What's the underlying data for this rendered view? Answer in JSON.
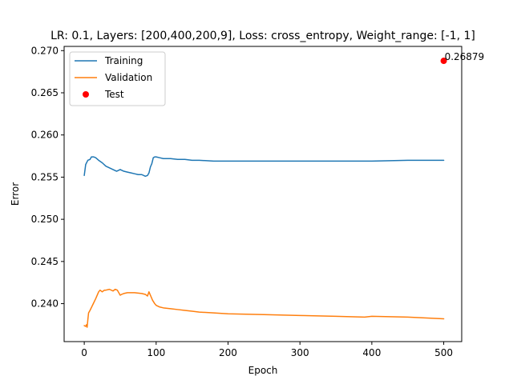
{
  "chart_data": {
    "type": "line",
    "title": "LR: 0.1, Layers: [200,400,200,9], Loss: cross_entropy, Weight_range: [-1, 1]",
    "xlabel": "Epoch",
    "ylabel": "Error",
    "xlim": [
      -28,
      525
    ],
    "ylim": [
      0.2355,
      0.2705
    ],
    "xticks": [
      0,
      100,
      200,
      300,
      400,
      500
    ],
    "xtick_labels": [
      "0",
      "100",
      "200",
      "300",
      "400",
      "500"
    ],
    "yticks": [
      0.24,
      0.245,
      0.25,
      0.255,
      0.26,
      0.265,
      0.27
    ],
    "ytick_labels": [
      "0.240",
      "0.245",
      "0.250",
      "0.255",
      "0.260",
      "0.265",
      "0.270"
    ],
    "grid": false,
    "legend_position": "top-left",
    "series": [
      {
        "name": "Training",
        "color": "#1f77b4",
        "x": [
          0,
          2,
          5,
          8,
          10,
          13,
          16,
          20,
          25,
          30,
          35,
          40,
          45,
          50,
          55,
          60,
          65,
          70,
          75,
          80,
          85,
          88,
          90,
          92,
          94,
          96,
          98,
          100,
          105,
          110,
          120,
          130,
          140,
          150,
          160,
          180,
          200,
          250,
          300,
          350,
          400,
          450,
          500
        ],
        "values": [
          0.2552,
          0.2565,
          0.257,
          0.2571,
          0.2574,
          0.2574,
          0.2573,
          0.257,
          0.2567,
          0.2563,
          0.2561,
          0.2559,
          0.2557,
          0.2559,
          0.2557,
          0.2556,
          0.2555,
          0.2554,
          0.2553,
          0.2553,
          0.2551,
          0.2552,
          0.2555,
          0.2562,
          0.2566,
          0.2573,
          0.2574,
          0.2574,
          0.2573,
          0.2572,
          0.2572,
          0.2571,
          0.2571,
          0.257,
          0.257,
          0.2569,
          0.2569,
          0.2569,
          0.2569,
          0.2569,
          0.2569,
          0.257,
          0.257
        ]
      },
      {
        "name": "Validation",
        "color": "#ff7f0e",
        "x": [
          0,
          2,
          3,
          4,
          5,
          6,
          8,
          12,
          16,
          20,
          22,
          25,
          28,
          30,
          35,
          40,
          43,
          46,
          50,
          52,
          55,
          60,
          70,
          80,
          85,
          88,
          90,
          92,
          95,
          98,
          100,
          105,
          110,
          120,
          130,
          140,
          150,
          160,
          180,
          200,
          250,
          300,
          350,
          390,
          400,
          450,
          500
        ],
        "values": [
          0.2374,
          0.2373,
          0.2375,
          0.2372,
          0.2381,
          0.2389,
          0.2392,
          0.2399,
          0.2406,
          0.2414,
          0.2416,
          0.2414,
          0.2416,
          0.2416,
          0.2417,
          0.2415,
          0.2417,
          0.2416,
          0.241,
          0.2411,
          0.2412,
          0.2413,
          0.2413,
          0.2412,
          0.2411,
          0.2409,
          0.2414,
          0.241,
          0.2404,
          0.24,
          0.2398,
          0.2396,
          0.2395,
          0.2394,
          0.2393,
          0.2392,
          0.2391,
          0.239,
          0.2389,
          0.2388,
          0.2387,
          0.2386,
          0.2385,
          0.2384,
          0.2385,
          0.2384,
          0.2382
        ]
      }
    ],
    "points": [
      {
        "name": "Test",
        "color": "#ff0000",
        "x": 500,
        "y": 0.26879,
        "label": "0.26879"
      }
    ]
  }
}
